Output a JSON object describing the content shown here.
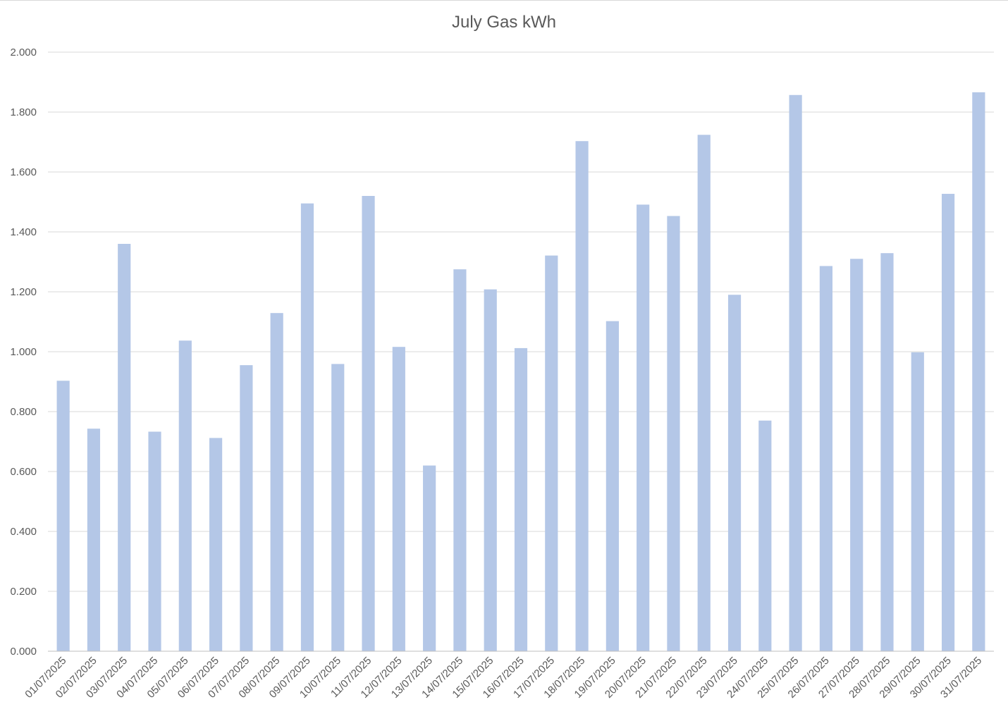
{
  "chart_data": {
    "type": "bar",
    "title": "July Gas kWh",
    "xlabel": "",
    "ylabel": "",
    "ylim": [
      0,
      2
    ],
    "y_ticks": [
      "0.000",
      "0.200",
      "0.400",
      "0.600",
      "0.800",
      "1.000",
      "1.200",
      "1.400",
      "1.600",
      "1.800",
      "2.000"
    ],
    "grid": true,
    "legend": "none",
    "bar_color": "#b4c7e7",
    "categories": [
      "01/07/2025",
      "02/07/2025",
      "03/07/2025",
      "04/07/2025",
      "05/07/2025",
      "06/07/2025",
      "07/07/2025",
      "08/07/2025",
      "09/07/2025",
      "10/07/2025",
      "11/07/2025",
      "12/07/2025",
      "13/07/2025",
      "14/07/2025",
      "15/07/2025",
      "16/07/2025",
      "17/07/2025",
      "18/07/2025",
      "19/07/2025",
      "20/07/2025",
      "21/07/2025",
      "22/07/2025",
      "23/07/2025",
      "24/07/2025",
      "25/07/2025",
      "26/07/2025",
      "27/07/2025",
      "28/07/2025",
      "29/07/2025",
      "30/07/2025",
      "31/07/2025"
    ],
    "values": [
      0.903,
      0.743,
      1.36,
      0.733,
      1.037,
      0.712,
      0.955,
      1.129,
      1.495,
      0.959,
      1.52,
      1.016,
      0.62,
      1.275,
      1.208,
      1.012,
      1.321,
      1.703,
      1.102,
      1.491,
      1.453,
      1.724,
      1.19,
      0.77,
      1.857,
      1.286,
      1.31,
      1.329,
      0.998,
      1.527,
      1.866
    ]
  }
}
